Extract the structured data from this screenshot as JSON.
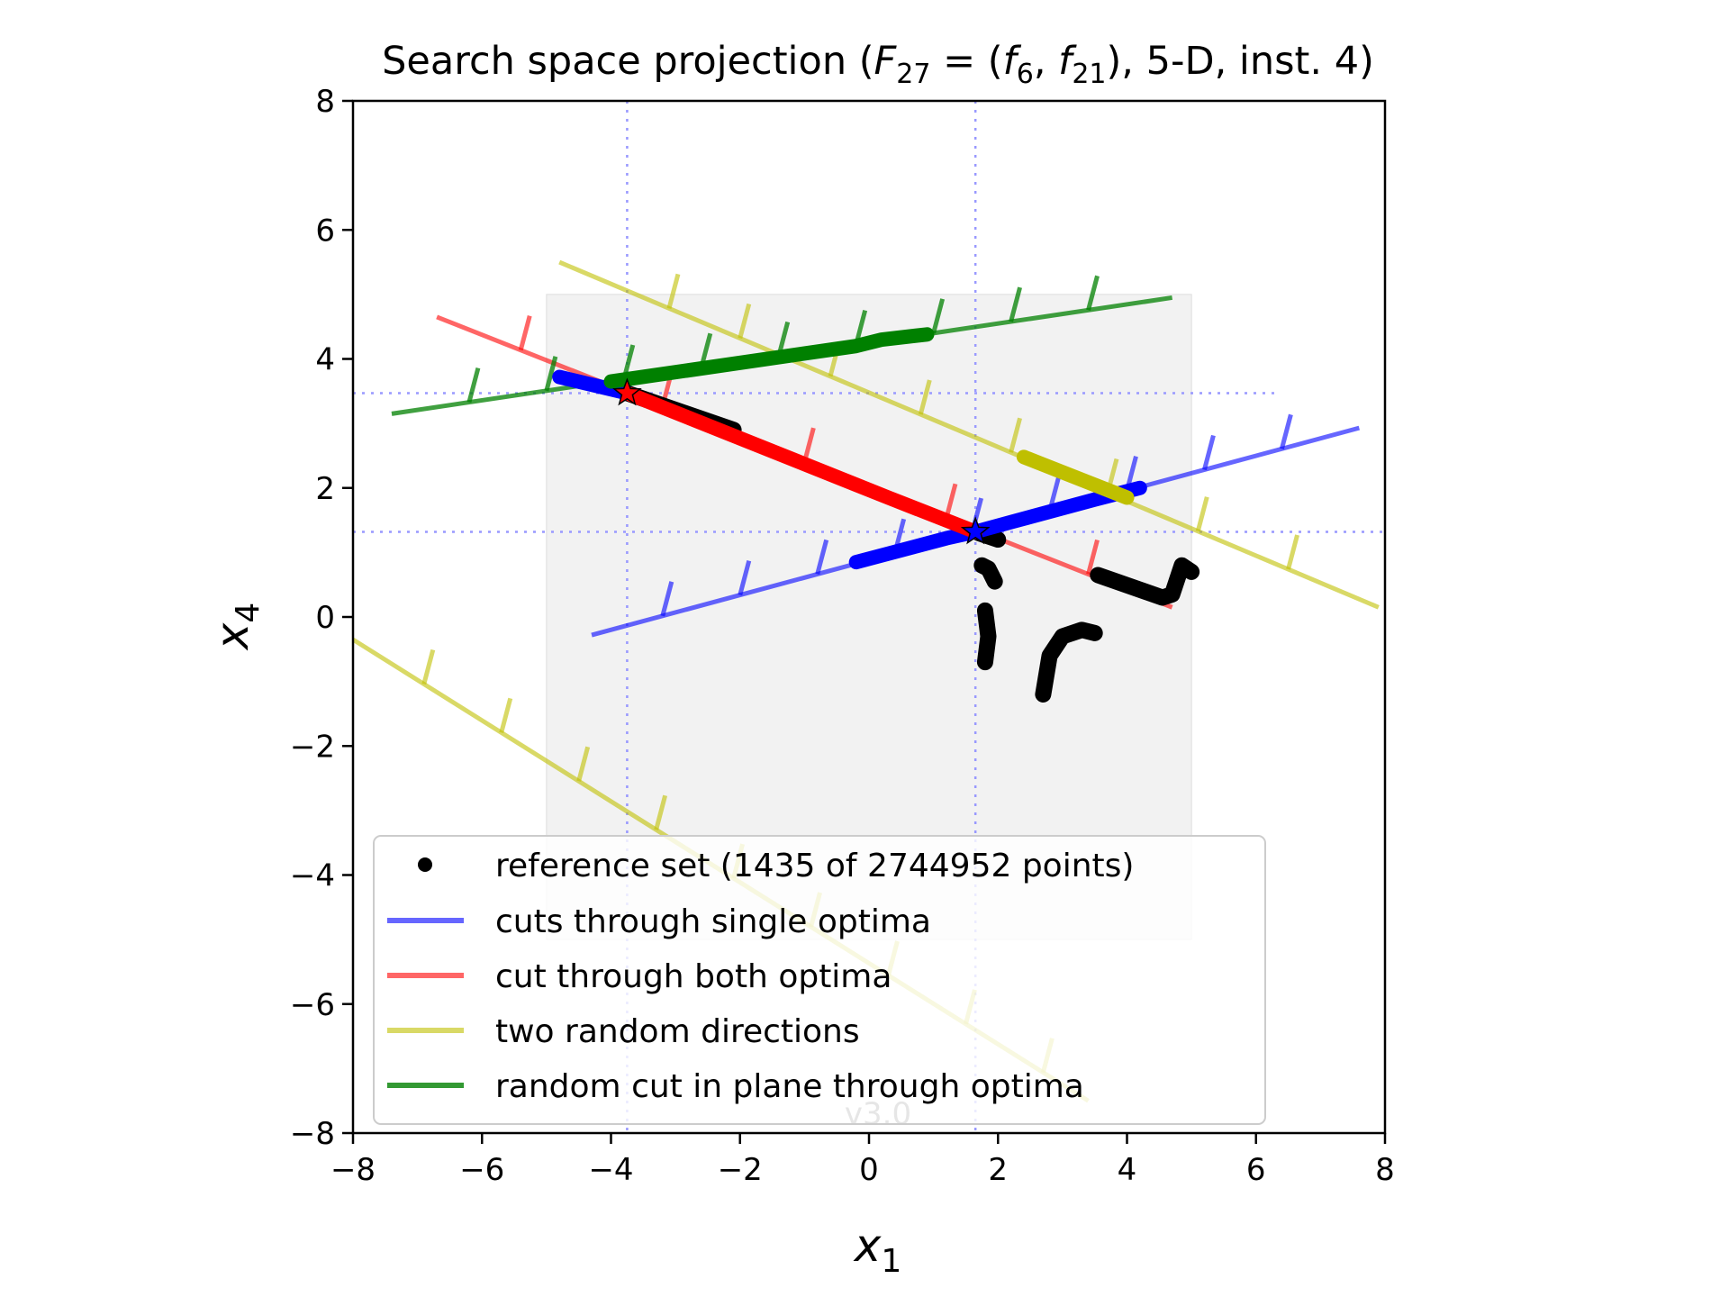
{
  "chart_data": {
    "type": "line",
    "title": "Search space projection (F27 = (f6, f21), 5-D, inst. 4)",
    "title_parts": {
      "prefix": "Search space projection (",
      "F": "F",
      "F_sub": "27",
      "eq": " = (",
      "f1": "f",
      "f1_sub": "6",
      "comma": ", ",
      "f2": "f",
      "f2_sub": "21",
      "suffix": "), 5-D, inst. 4)"
    },
    "xlabel": {
      "base": "x",
      "sub": "1"
    },
    "ylabel": {
      "base": "x",
      "sub": "4"
    },
    "xlim": [
      -8,
      8
    ],
    "ylim": [
      -8,
      8
    ],
    "xticks": [
      -8,
      -6,
      -4,
      -2,
      0,
      2,
      4,
      6,
      8
    ],
    "yticks": [
      -8,
      -6,
      -4,
      -2,
      0,
      2,
      4,
      6,
      8
    ],
    "tick_labels": [
      "−8",
      "−6",
      "−4",
      "−2",
      "0",
      "2",
      "4",
      "6",
      "8"
    ],
    "version_text": "v3.0",
    "colors": {
      "blue": "#0000ff",
      "red": "#ff0000",
      "yellow": "#bfbf00",
      "green": "#008000",
      "black": "#000000",
      "region": "#f2f2f2",
      "guide": "#9999ff"
    },
    "search_region": {
      "x": [
        -5,
        5
      ],
      "y": [
        -5,
        5
      ]
    },
    "optima": [
      {
        "x": -3.75,
        "y": 3.47,
        "color": "#ff0000"
      },
      {
        "x": 1.65,
        "y": 1.32,
        "color": "#0000ff"
      }
    ],
    "guide_lines": {
      "vertical_x": [
        -3.75,
        1.65
      ],
      "horizontal_y": [
        3.47,
        1.32
      ],
      "vertical_range": [
        {
          "x": -3.75,
          "y": [
            -8,
            8
          ]
        },
        {
          "x": 1.65,
          "y": [
            -8,
            8
          ]
        }
      ],
      "horizontal_range": [
        {
          "y": 3.47,
          "x": [
            -8,
            6.3
          ]
        },
        {
          "y": 1.32,
          "x": [
            -8,
            8
          ]
        }
      ]
    },
    "legend": {
      "location": "lower center",
      "entries": [
        {
          "label": "reference set (1435 of 2744952 points)",
          "kind": "marker",
          "color": "#000000"
        },
        {
          "label": "cuts through single optima",
          "kind": "line",
          "color": "#0000ff"
        },
        {
          "label": "cut through both optima",
          "kind": "line",
          "color": "#ff0000"
        },
        {
          "label": "two random directions",
          "kind": "line",
          "color": "#bfbf00"
        },
        {
          "label": "random cut in plane through optima",
          "kind": "line",
          "color": "#008000"
        }
      ]
    },
    "series": [
      {
        "name": "cuts through single optima",
        "color": "#0000ff",
        "line": [
          [
            -4.3,
            -0.28
          ],
          [
            7.6,
            2.93
          ]
        ],
        "ticks_at_x": [
          -3.2,
          -2.0,
          -0.8,
          0.4,
          1.6,
          2.8,
          4.0,
          5.2,
          6.4
        ],
        "highlight": [
          [
            -0.2,
            0.85
          ],
          [
            1.2,
            1.22
          ],
          [
            1.65,
            1.32
          ],
          [
            2.2,
            1.47
          ],
          [
            3.5,
            1.82
          ],
          [
            4.2,
            2.0
          ]
        ]
      },
      {
        "name": "cuts through single optima",
        "color": "#0000ff",
        "line": [
          [
            -4.9,
            3.75
          ],
          [
            -3.75,
            3.47
          ]
        ],
        "ticks_at_x": [],
        "highlight": [
          [
            -4.8,
            3.72
          ],
          [
            -3.75,
            3.47
          ]
        ]
      },
      {
        "name": "cut through both optima",
        "color": "#ff0000",
        "line": [
          [
            -6.7,
            4.65
          ],
          [
            4.7,
            0.15
          ]
        ],
        "ticks_at_x": [
          -5.4,
          -3.2,
          -1.0,
          1.2,
          3.4
        ],
        "highlight": [
          [
            -3.7,
            3.45
          ],
          [
            -0.2,
            2.05
          ],
          [
            0.3,
            1.85
          ],
          [
            1.65,
            1.32
          ]
        ]
      },
      {
        "name": "two random directions",
        "color": "#bfbf00",
        "line": [
          [
            -4.8,
            5.5
          ],
          [
            7.9,
            0.15
          ]
        ],
        "ticks_at_x": [
          -3.1,
          -2.0,
          -0.6,
          0.8,
          2.2,
          3.7,
          5.1,
          6.5
        ],
        "highlight": [
          [
            2.4,
            2.48
          ],
          [
            4.0,
            1.85
          ]
        ]
      },
      {
        "name": "two random directions",
        "color": "#bfbf00",
        "line": [
          [
            -8.0,
            -0.35
          ],
          [
            3.4,
            -7.5
          ]
        ],
        "ticks_at_x": [
          -6.9,
          -5.7,
          -4.5,
          -3.3,
          -2.1,
          -0.9,
          0.3,
          1.5,
          2.7
        ],
        "highlight": []
      },
      {
        "name": "random cut in plane through optima",
        "color": "#008000",
        "line": [
          [
            -7.4,
            3.15
          ],
          [
            4.7,
            4.95
          ]
        ],
        "ticks_at_x": [
          -6.2,
          -5.0,
          -3.8,
          -2.6,
          -1.4,
          -0.2,
          1.0,
          2.2,
          3.4
        ],
        "highlight": [
          [
            -4.0,
            3.65
          ],
          [
            -0.2,
            4.2
          ],
          [
            0.2,
            4.3
          ],
          [
            0.9,
            4.38
          ]
        ]
      }
    ],
    "reference_set": [
      [
        [
          -3.75,
          3.47
        ],
        [
          -2.1,
          2.9
        ]
      ],
      [
        [
          1.7,
          1.3
        ],
        [
          2.0,
          1.2
        ]
      ],
      [
        [
          1.75,
          0.8
        ],
        [
          1.85,
          0.75
        ],
        [
          1.95,
          0.55
        ]
      ],
      [
        [
          1.8,
          0.1
        ],
        [
          1.85,
          -0.3
        ],
        [
          1.8,
          -0.7
        ]
      ],
      [
        [
          2.7,
          -1.2
        ],
        [
          2.8,
          -0.6
        ],
        [
          3.0,
          -0.3
        ],
        [
          3.3,
          -0.2
        ],
        [
          3.5,
          -0.25
        ]
      ],
      [
        [
          3.55,
          0.65
        ],
        [
          4.55,
          0.3
        ],
        [
          4.7,
          0.35
        ],
        [
          4.85,
          0.8
        ],
        [
          5.0,
          0.7
        ]
      ]
    ]
  }
}
